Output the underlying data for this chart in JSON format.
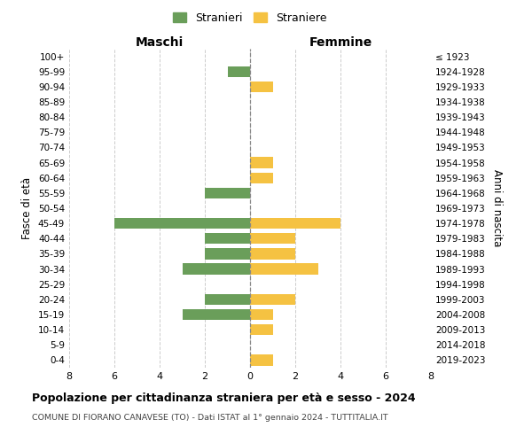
{
  "age_groups": [
    "100+",
    "95-99",
    "90-94",
    "85-89",
    "80-84",
    "75-79",
    "70-74",
    "65-69",
    "60-64",
    "55-59",
    "50-54",
    "45-49",
    "40-44",
    "35-39",
    "30-34",
    "25-29",
    "20-24",
    "15-19",
    "10-14",
    "5-9",
    "0-4"
  ],
  "birth_years": [
    "≤ 1923",
    "1924-1928",
    "1929-1933",
    "1934-1938",
    "1939-1943",
    "1944-1948",
    "1949-1953",
    "1954-1958",
    "1959-1963",
    "1964-1968",
    "1969-1973",
    "1974-1978",
    "1979-1983",
    "1984-1988",
    "1989-1993",
    "1994-1998",
    "1999-2003",
    "2004-2008",
    "2009-2013",
    "2014-2018",
    "2019-2023"
  ],
  "maschi": [
    0,
    1,
    0,
    0,
    0,
    0,
    0,
    0,
    0,
    2,
    0,
    6,
    2,
    2,
    3,
    0,
    2,
    3,
    0,
    0,
    0
  ],
  "femmine": [
    0,
    0,
    1,
    0,
    0,
    0,
    0,
    1,
    1,
    0,
    0,
    4,
    2,
    2,
    3,
    0,
    2,
    1,
    1,
    0,
    1
  ],
  "color_maschi": "#6a9e5a",
  "color_femmine": "#f5c242",
  "xlim": 8,
  "title": "Popolazione per cittadinanza straniera per età e sesso - 2024",
  "subtitle": "COMUNE DI FIORANO CANAVESE (TO) - Dati ISTAT al 1° gennaio 2024 - TUTTITALIA.IT",
  "ylabel_left": "Fasce di età",
  "ylabel_right": "Anni di nascita",
  "label_maschi": "Stranieri",
  "label_femmine": "Straniere",
  "header_left": "Maschi",
  "header_right": "Femmine",
  "bg_color": "#ffffff",
  "grid_color": "#cccccc"
}
